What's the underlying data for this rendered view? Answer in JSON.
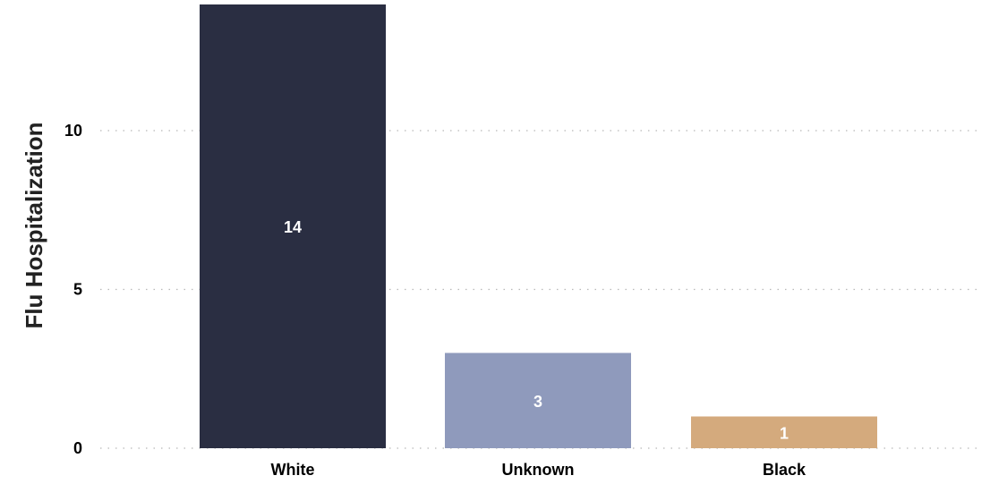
{
  "chart_data": {
    "type": "bar",
    "title": "",
    "xlabel": "",
    "ylabel": "Flu Hospitalization",
    "categories": [
      "White",
      "Unknown",
      "Black"
    ],
    "values": [
      14,
      3,
      1
    ],
    "data_labels": [
      "14",
      "3",
      "1"
    ],
    "colors": [
      "#2a2e42",
      "#8f9abc",
      "#d4aa7d"
    ],
    "ylim": [
      0,
      14
    ],
    "yticks": [
      0,
      5,
      10
    ],
    "ytick_labels": [
      "0",
      "5",
      "10"
    ],
    "grid": "horizontal-dotted",
    "legend": "none"
  }
}
